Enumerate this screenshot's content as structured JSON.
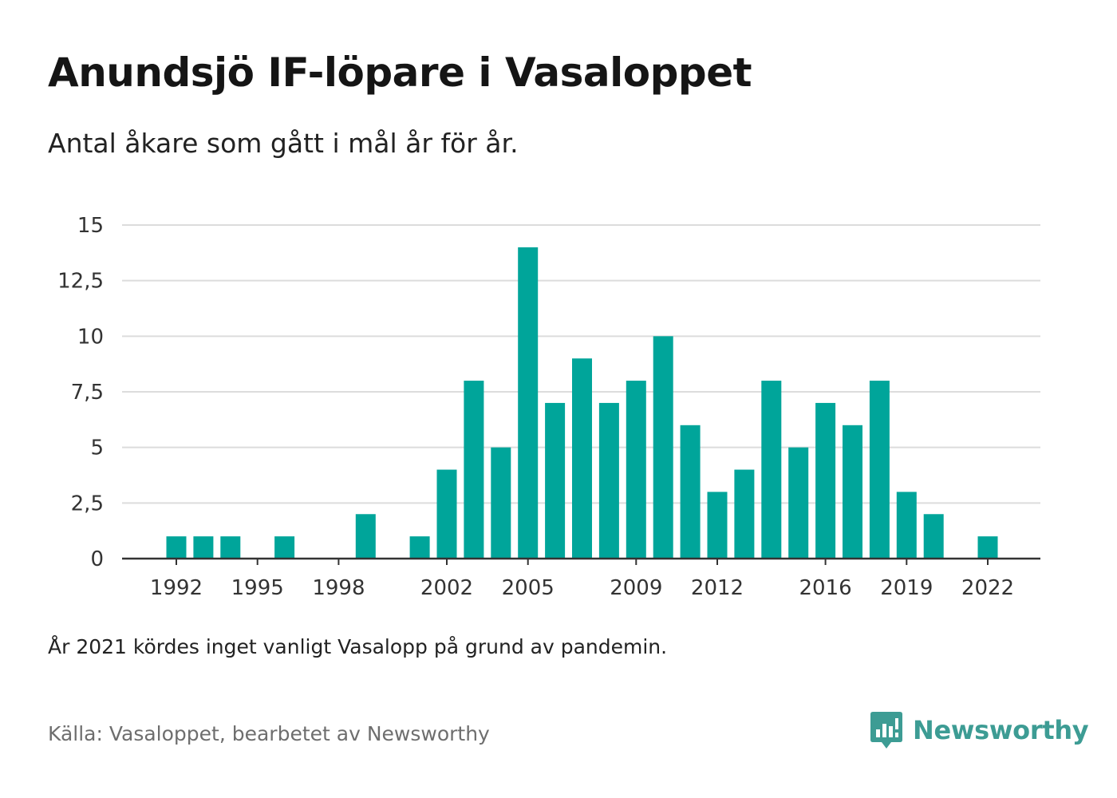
{
  "title": "Anundsjö IF-löpare i Vasaloppet",
  "subtitle": "Antal åkare som gått i mål år för år.",
  "note": "År 2021 kördes inget vanligt Vasalopp på grund av pandemin.",
  "source": "Källa: Vasaloppet, bearbetet av Newsworthy",
  "brand": {
    "name": "Newsworthy",
    "icon": "newsworthy-logo-icon"
  },
  "colors": {
    "bar": "#00a59a",
    "grid": "#dcdcdc",
    "axis": "#333333",
    "brand": "#3d9c94"
  },
  "chart_data": {
    "type": "bar",
    "x": [
      1992,
      1993,
      1994,
      1995,
      1996,
      1997,
      1998,
      1999,
      2000,
      2001,
      2002,
      2003,
      2004,
      2005,
      2006,
      2007,
      2008,
      2009,
      2010,
      2011,
      2012,
      2013,
      2014,
      2015,
      2016,
      2017,
      2018,
      2019,
      2020,
      2021,
      2022
    ],
    "values": [
      1,
      1,
      1,
      0,
      1,
      0,
      0,
      2,
      0,
      1,
      4,
      8,
      5,
      14,
      7,
      9,
      7,
      8,
      10,
      6,
      3,
      4,
      8,
      5,
      7,
      6,
      8,
      3,
      2,
      0,
      1
    ],
    "x_tick_labels": [
      "1992",
      "1995",
      "1998",
      "2002",
      "2005",
      "2009",
      "2012",
      "2016",
      "2019",
      "2022"
    ],
    "y_ticks": [
      0,
      2.5,
      5,
      7.5,
      10,
      12.5,
      15
    ],
    "y_tick_labels": [
      "0",
      "2,5",
      "5",
      "7,5",
      "10",
      "12,5",
      "15"
    ],
    "ylim": [
      0,
      15
    ],
    "xlabel": "",
    "ylabel": "",
    "grid": true,
    "legend": "none"
  }
}
